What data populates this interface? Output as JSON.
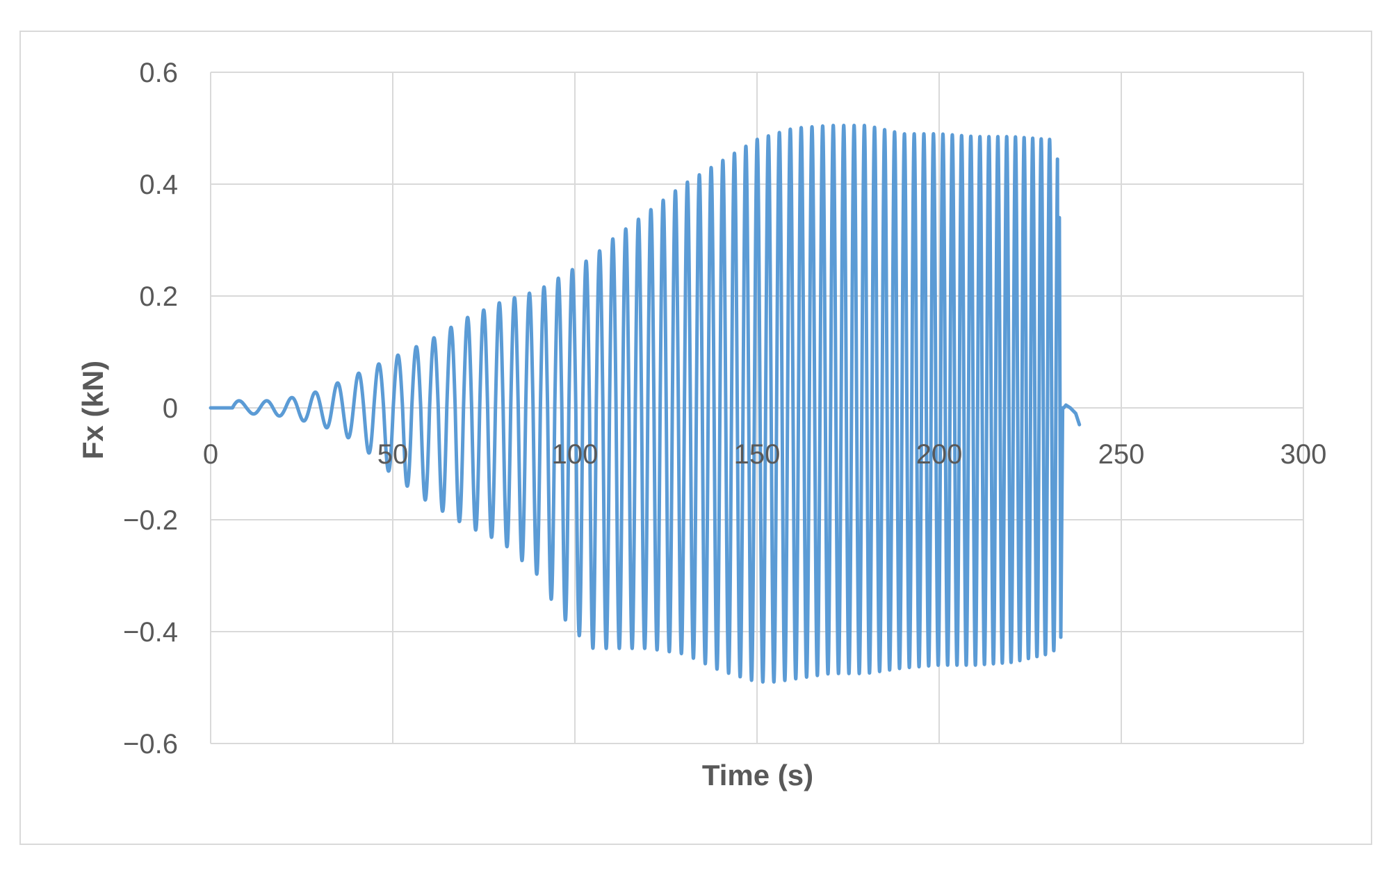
{
  "chart_data": {
    "type": "line",
    "title": "",
    "xlabel": "Time (s)",
    "ylabel": "Fx (kN)",
    "xlim": [
      0,
      300
    ],
    "ylim": [
      -0.6,
      0.6
    ],
    "xticks": [
      0,
      50,
      100,
      150,
      200,
      250,
      300
    ],
    "yticks": [
      0.6,
      0.4,
      0.2,
      0,
      -0.2,
      -0.4,
      -0.6
    ],
    "xtick_labels": [
      "0",
      "50",
      "100",
      "150",
      "200",
      "250",
      "300"
    ],
    "ytick_labels": [
      "0.6",
      "0.4",
      "0.2",
      "0",
      "−0.2",
      "−0.4",
      "−0.6"
    ],
    "grid": true,
    "legend": "none",
    "line_color": "#5b9bd5",
    "series": [
      {
        "envelope": {
          "t": [
            0,
            6,
            10,
            20,
            30,
            40,
            50,
            60,
            70,
            80,
            90,
            95,
            100,
            105,
            110,
            120,
            130,
            140,
            150,
            155,
            160,
            170,
            180,
            190,
            200,
            210,
            220,
            230,
            232.5
          ],
          "peak_max": [
            0,
            0.015,
            0.01,
            0.015,
            0.03,
            0.06,
            0.09,
            0.12,
            0.16,
            0.19,
            0.21,
            0.23,
            0.25,
            0.27,
            0.3,
            0.35,
            0.4,
            0.44,
            0.48,
            0.49,
            0.5,
            0.505,
            0.505,
            0.49,
            0.49,
            0.485,
            0.485,
            0.48,
            0.48
          ],
          "peak_min": [
            0,
            -0.005,
            -0.01,
            -0.015,
            -0.03,
            -0.06,
            -0.12,
            -0.17,
            -0.21,
            -0.24,
            -0.3,
            -0.36,
            -0.4,
            -0.43,
            -0.43,
            -0.43,
            -0.44,
            -0.47,
            -0.49,
            -0.49,
            -0.485,
            -0.475,
            -0.475,
            -0.465,
            -0.46,
            -0.46,
            -0.455,
            -0.44,
            -0.43
          ],
          "period": [
            8,
            8,
            7.5,
            6.8,
            6.2,
            5.7,
            5.2,
            4.8,
            4.5,
            4.2,
            4.0,
            3.9,
            3.8,
            3.7,
            3.6,
            3.4,
            3.3,
            3.2,
            3.1,
            3.0,
            3.0,
            2.9,
            2.8,
            2.7,
            2.6,
            2.5,
            2.4,
            2.3,
            2.3
          ]
        },
        "tail": {
          "x": [
            232.5,
            233.0,
            233.4,
            233.9,
            234.2,
            234.8,
            236.0,
            237.5,
            238.5
          ],
          "y": [
            0.3,
            0.34,
            -0.41,
            0.0,
            0.0,
            0.005,
            0.0,
            -0.01,
            -0.03
          ]
        }
      }
    ]
  }
}
